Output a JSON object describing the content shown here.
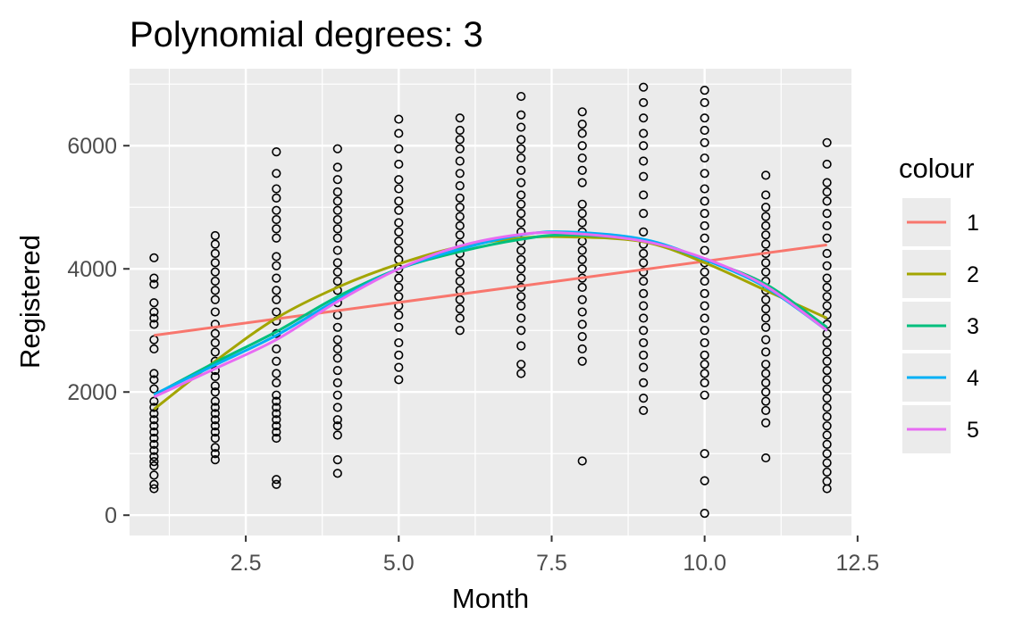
{
  "chart_data": {
    "type": "scatter",
    "title": "Polynomial degrees: 3",
    "xlabel": "Month",
    "ylabel": "Registered",
    "xlim": [
      0.6,
      12.4
    ],
    "ylim": [
      -330,
      7250
    ],
    "x_ticks": [
      2.5,
      5.0,
      7.5,
      10.0,
      12.5
    ],
    "x_tick_labels": [
      "2.5",
      "5.0",
      "7.5",
      "10.0",
      "12.5"
    ],
    "y_ticks": [
      0,
      2000,
      4000,
      6000
    ],
    "y_tick_labels": [
      "0",
      "2000",
      "4000",
      "6000"
    ],
    "grid": true,
    "background": "#ebebeb",
    "legend": {
      "title": "colour",
      "position": "right",
      "entries": [
        {
          "label": "1",
          "color": "#f8766d"
        },
        {
          "label": "2",
          "color": "#a3a500"
        },
        {
          "label": "3",
          "color": "#00bf7d"
        },
        {
          "label": "4",
          "color": "#00b0f6"
        },
        {
          "label": "5",
          "color": "#e76bf3"
        }
      ]
    },
    "points": [
      {
        "month": 1,
        "values": [
          430,
          500,
          650,
          800,
          870,
          950,
          1050,
          1150,
          1250,
          1350,
          1450,
          1550,
          1650,
          1750,
          1850,
          2050,
          2200,
          2300,
          2700,
          2850,
          3100,
          3200,
          3300,
          3450,
          3750,
          3850,
          4180
        ]
      },
      {
        "month": 2,
        "values": [
          900,
          1000,
          1100,
          1250,
          1350,
          1450,
          1550,
          1650,
          1750,
          1850,
          2000,
          2100,
          2250,
          2350,
          2500,
          2650,
          2800,
          2950,
          3100,
          3300,
          3500,
          3650,
          3800,
          3950,
          4100,
          4250,
          4400,
          4540
        ]
      },
      {
        "month": 3,
        "values": [
          500,
          580,
          1250,
          1350,
          1450,
          1550,
          1650,
          1750,
          1850,
          1950,
          2150,
          2300,
          2500,
          2700,
          2950,
          3150,
          3300,
          3500,
          3650,
          3850,
          4050,
          4200,
          4500,
          4650,
          4800,
          4950,
          5150,
          5300,
          5550,
          5900
        ]
      },
      {
        "month": 4,
        "values": [
          680,
          900,
          1300,
          1450,
          1550,
          1750,
          1950,
          2150,
          2350,
          2550,
          2700,
          2850,
          3050,
          3250,
          3450,
          3650,
          3800,
          3950,
          4100,
          4300,
          4500,
          4650,
          4800,
          4950,
          5100,
          5250,
          5450,
          5650,
          5950
        ]
      },
      {
        "month": 5,
        "values": [
          2200,
          2400,
          2600,
          2800,
          3050,
          3250,
          3400,
          3550,
          3700,
          3850,
          4000,
          4150,
          4300,
          4450,
          4600,
          4750,
          4950,
          5100,
          5300,
          5450,
          5700,
          5950,
          6200,
          6430
        ]
      },
      {
        "month": 6,
        "values": [
          3000,
          3200,
          3350,
          3500,
          3650,
          3800,
          3950,
          4100,
          4250,
          4400,
          4550,
          4700,
          4850,
          5000,
          5150,
          5350,
          5550,
          5750,
          5950,
          6100,
          6250,
          6450
        ]
      },
      {
        "month": 7,
        "values": [
          2300,
          2450,
          2750,
          3000,
          3200,
          3400,
          3550,
          3700,
          3850,
          4000,
          4150,
          4300,
          4450,
          4600,
          4750,
          4900,
          5050,
          5200,
          5400,
          5600,
          5800,
          5950,
          6100,
          6300,
          6500,
          6800
        ]
      },
      {
        "month": 8,
        "values": [
          880,
          2500,
          2700,
          2900,
          3100,
          3300,
          3500,
          3700,
          3850,
          4000,
          4150,
          4300,
          4450,
          4600,
          4750,
          4900,
          5050,
          5400,
          5600,
          5800,
          6000,
          6200,
          6350,
          6550
        ]
      },
      {
        "month": 9,
        "values": [
          1700,
          1900,
          2150,
          2400,
          2600,
          2800,
          3000,
          3200,
          3400,
          3600,
          3800,
          3950,
          4100,
          4250,
          4400,
          4600,
          4900,
          5200,
          5500,
          5750,
          6000,
          6200,
          6450,
          6700,
          6950
        ]
      },
      {
        "month": 10,
        "values": [
          30,
          560,
          1000,
          1950,
          2150,
          2300,
          2450,
          2600,
          2800,
          3000,
          3200,
          3400,
          3600,
          3800,
          3950,
          4100,
          4300,
          4500,
          4700,
          4900,
          5100,
          5300,
          5550,
          5800,
          6050,
          6250,
          6450,
          6700,
          6900
        ]
      },
      {
        "month": 11,
        "values": [
          930,
          1500,
          1700,
          1850,
          2000,
          2150,
          2300,
          2450,
          2650,
          2850,
          3050,
          3200,
          3350,
          3500,
          3650,
          3800,
          3950,
          4100,
          4250,
          4400,
          4550,
          4700,
          4850,
          5000,
          5200,
          5520
        ]
      },
      {
        "month": 12,
        "values": [
          430,
          550,
          700,
          850,
          1000,
          1150,
          1300,
          1450,
          1600,
          1750,
          1900,
          2050,
          2200,
          2350,
          2500,
          2650,
          2800,
          2950,
          3100,
          3250,
          3400,
          3550,
          3700,
          3850,
          4050,
          4250,
          4500,
          4700,
          4900,
          5100,
          5250,
          5400,
          5700,
          6050
        ]
      }
    ],
    "series": [
      {
        "name": "1",
        "color": "#f8766d",
        "x": [
          1,
          12
        ],
        "y": [
          2920,
          4390
        ]
      },
      {
        "name": "2",
        "color": "#a3a500",
        "x": [
          1,
          2,
          3,
          4,
          5,
          6,
          7,
          7.75,
          9,
          10,
          11,
          12
        ],
        "y": [
          1720,
          2500,
          3200,
          3700,
          4080,
          4360,
          4500,
          4520,
          4440,
          4100,
          3650,
          3200
        ]
      },
      {
        "name": "3",
        "color": "#00bf7d",
        "x": [
          1,
          2,
          3,
          4,
          5,
          6,
          7,
          7.75,
          9,
          10,
          11,
          12
        ],
        "y": [
          1950,
          2480,
          2980,
          3550,
          4000,
          4280,
          4480,
          4550,
          4460,
          4150,
          3750,
          3050
        ]
      },
      {
        "name": "4",
        "color": "#00b0f6",
        "x": [
          1,
          2,
          3,
          4,
          5,
          6,
          7,
          7.75,
          9,
          10,
          11,
          12
        ],
        "y": [
          1960,
          2440,
          2920,
          3500,
          4000,
          4320,
          4550,
          4600,
          4480,
          4150,
          3700,
          3000
        ]
      },
      {
        "name": "5",
        "color": "#e76bf3",
        "x": [
          1,
          2,
          3,
          4,
          5,
          6,
          7,
          7.75,
          9,
          10,
          11,
          12
        ],
        "y": [
          1920,
          2380,
          2850,
          3470,
          4000,
          4370,
          4560,
          4580,
          4450,
          4170,
          3720,
          3000
        ]
      }
    ]
  }
}
